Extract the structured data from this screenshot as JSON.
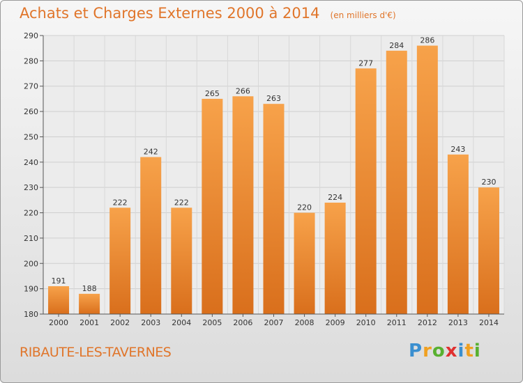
{
  "title": "Achats et Charges Externes 2000 à 2014",
  "subtitle": "(en milliers d'€)",
  "commune": "RIBAUTE-LES-TAVERNES",
  "logo": {
    "letters": [
      "P",
      "r",
      "o",
      "x",
      "i",
      "t",
      "i"
    ],
    "colors": [
      "#3a8fd0",
      "#f0a020",
      "#58b030",
      "#e03030",
      "#3a8fd0",
      "#f0a020",
      "#58b030"
    ]
  },
  "chart_data": {
    "type": "bar",
    "categories": [
      "2000",
      "2001",
      "2002",
      "2003",
      "2004",
      "2005",
      "2006",
      "2007",
      "2008",
      "2009",
      "2010",
      "2011",
      "2012",
      "2013",
      "2014"
    ],
    "values": [
      191,
      188,
      222,
      242,
      222,
      265,
      266,
      263,
      220,
      224,
      277,
      284,
      286,
      243,
      230
    ],
    "ylim": [
      180,
      290
    ],
    "yticks": [
      180,
      190,
      200,
      210,
      220,
      230,
      240,
      250,
      260,
      270,
      280,
      290
    ],
    "grid": true,
    "bar_color_top": "#f7a24a",
    "bar_color_bottom": "#d96f1c"
  }
}
